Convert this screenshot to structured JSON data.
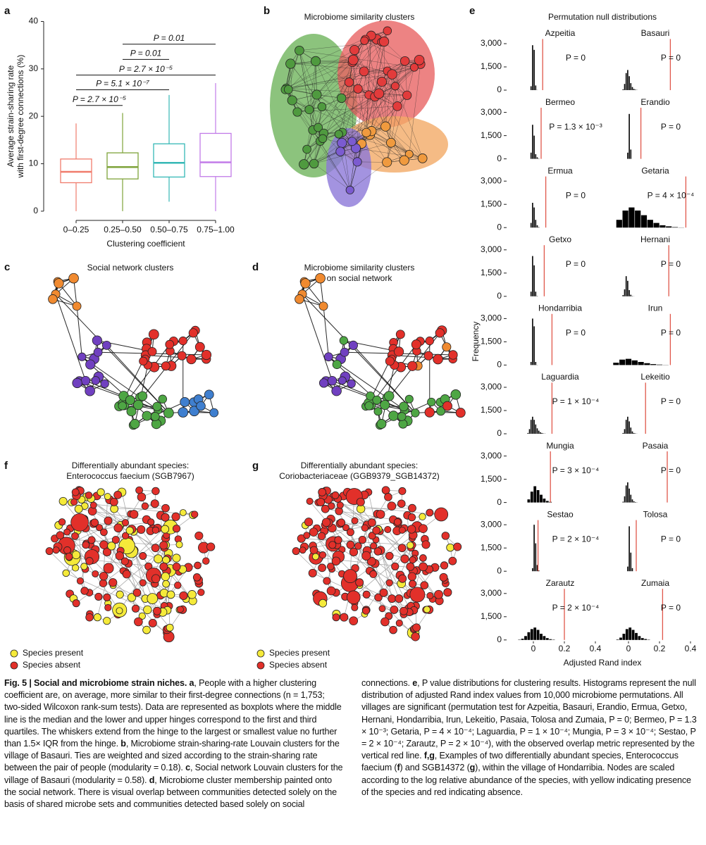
{
  "chart_data": [
    {
      "type": "box",
      "panel": "a",
      "categories": [
        "0–0.25",
        "0.25–0.50",
        "0.50–0.75",
        "0.75–1.00"
      ],
      "boxes": [
        {
          "min": 0,
          "q1": 6,
          "median": 8.3,
          "q3": 11,
          "max": 18.5
        },
        {
          "min": 0,
          "q1": 6.8,
          "median": 9.3,
          "q3": 12.3,
          "max": 20.7
        },
        {
          "min": 2,
          "q1": 7.2,
          "median": 10.2,
          "q3": 14.2,
          "max": 24.5
        },
        {
          "min": 0,
          "q1": 7.3,
          "median": 10.3,
          "q3": 16.4,
          "max": 27
        }
      ],
      "colors": [
        "#f07c6c",
        "#7ea33a",
        "#35b8b6",
        "#c27be8"
      ],
      "ylim": [
        -1.5,
        42
      ],
      "yticks": [
        0,
        10,
        20,
        30,
        40
      ],
      "x_label": "Clustering coefficient",
      "y_label": [
        "Average strain-sharing rate",
        "with first-degree connections (%)"
      ],
      "annotations": [
        {
          "text": "P = 0.01",
          "from": "0.25–0.50",
          "to": "0.75–1.00",
          "y": 35.2
        },
        {
          "text": "P = 0.01",
          "from": "0.25–0.50",
          "to": "0.50–0.75",
          "y": 32
        },
        {
          "text": "P = 2.7 × 10⁻⁵",
          "from": "0–0.25",
          "to": "0.75–1.00",
          "y": 28.7
        },
        {
          "text": "P = 5.1 × 10⁻⁷",
          "from": "0–0.25",
          "to": "0.50–0.75",
          "y": 25.6
        },
        {
          "text": "P = 2.7 × 10⁻⁵",
          "from": "0–0.25",
          "to": "0.25–0.50",
          "y": 22.3
        }
      ]
    },
    {
      "type": "network",
      "panel": "b",
      "title": [
        "Microbiome similarity clusters"
      ]
    },
    {
      "type": "network",
      "panel": "c",
      "title": [
        "Social network clusters"
      ]
    },
    {
      "type": "network",
      "panel": "d",
      "title": [
        "Microbiome similarity clusters",
        "on social network"
      ]
    },
    {
      "type": "network",
      "panel": "f",
      "title": [
        "Differentially abundant species:",
        "Enterococcus faecium (SGB7967)"
      ],
      "legend": [
        {
          "name": "Species present",
          "color": "#f5ea3a"
        },
        {
          "name": "Species absent",
          "color": "#e2302a"
        }
      ]
    },
    {
      "type": "network",
      "panel": "g",
      "title": [
        "Differentially abundant species:",
        "Coriobacteriaceae (GGB9379_SGB14372)"
      ],
      "legend": [
        {
          "name": "Species present",
          "color": "#f5ea3a"
        },
        {
          "name": "Species absent",
          "color": "#e2302a"
        }
      ]
    },
    {
      "type": "histogram",
      "panel": "e",
      "title": "Permutation null distributions",
      "x_label": "Adjusted Rand index",
      "y_label": "Frequency",
      "xlim": [
        -0.1,
        0.45
      ],
      "xticks": [
        0,
        0.2,
        0.4
      ],
      "ylim": [
        0,
        3300
      ],
      "yticks": [
        0,
        {
          "value": 1500,
          "label": "1,500"
        },
        {
          "value": 3000,
          "label": "3,000"
        }
      ],
      "color": "#000000",
      "line_color": "#e0574a",
      "panels": [
        {
          "title": "Azpeitia",
          "bins": [
            -0.02,
            -0.01,
            0,
            0.01,
            0.02,
            0.03
          ],
          "counts": [
            250,
            2900,
            2600,
            300,
            10
          ],
          "observed": 0.06,
          "annotation": "P = 0"
        },
        {
          "title": "Basauri",
          "bins": [
            -0.04,
            -0.03,
            -0.02,
            -0.01,
            0,
            0.01,
            0.02,
            0.03,
            0.04,
            0.05,
            0.06
          ],
          "counts": [
            50,
            400,
            1100,
            1300,
            900,
            450,
            200,
            80,
            30,
            10
          ],
          "observed": 0.27,
          "annotation": "P = 0"
        },
        {
          "title": "Bermeo",
          "bins": [
            -0.02,
            -0.01,
            0,
            0.01,
            0.02,
            0.03,
            0.04
          ],
          "counts": [
            400,
            2200,
            1500,
            300,
            100,
            20
          ],
          "observed": 0.05,
          "annotation": "P = 1.3 × 10⁻³"
        },
        {
          "title": "Erandio",
          "bins": [
            -0.01,
            0,
            0.01,
            0.02
          ],
          "counts": [
            400,
            2900,
            600
          ],
          "observed": 0.08,
          "annotation": "P = 0"
        },
        {
          "title": "Ermua",
          "bins": [
            -0.02,
            -0.01,
            0,
            0.01,
            0.02,
            0.03,
            0.04
          ],
          "counts": [
            300,
            1600,
            1300,
            500,
            150,
            30
          ],
          "observed": 0.08,
          "annotation": "P = 0"
        },
        {
          "title": "Getaria",
          "bins": [
            -0.08,
            -0.04,
            0,
            0.04,
            0.08,
            0.12,
            0.16,
            0.2,
            0.24,
            0.28,
            0.32,
            0.36
          ],
          "counts": [
            500,
            1100,
            1300,
            1100,
            800,
            500,
            300,
            150,
            80,
            30,
            10
          ],
          "observed": 0.37,
          "annotation": "P = 4 × 10⁻⁴"
        },
        {
          "title": "Getxo",
          "bins": [
            -0.02,
            -0.01,
            0,
            0.01,
            0.02,
            0.03
          ],
          "counts": [
            300,
            2600,
            2000,
            300,
            20
          ],
          "observed": 0.07,
          "annotation": "P = 0"
        },
        {
          "title": "Hernani",
          "bins": [
            -0.04,
            -0.03,
            -0.02,
            -0.01,
            0,
            0.01,
            0.02,
            0.03,
            0.04
          ],
          "counts": [
            80,
            450,
            1300,
            1000,
            400,
            100,
            20,
            5
          ],
          "observed": 0.26,
          "annotation": "P = 0"
        },
        {
          "title": "Hondarribia",
          "bins": [
            -0.02,
            -0.01,
            0,
            0.01,
            0.02,
            0.03
          ],
          "counts": [
            200,
            3000,
            2500,
            200,
            10
          ],
          "observed": 0.12,
          "annotation": "P = 0"
        },
        {
          "title": "Irun",
          "bins": [
            -0.1,
            -0.06,
            -0.02,
            0.02,
            0.06,
            0.1,
            0.14,
            0.18,
            0.22,
            0.26
          ],
          "counts": [
            150,
            350,
            400,
            300,
            200,
            120,
            60,
            30,
            10
          ],
          "observed": 0.27,
          "annotation": "P = 0"
        },
        {
          "title": "Laguardia",
          "bins": [
            -0.04,
            -0.03,
            -0.02,
            -0.01,
            0,
            0.01,
            0.02,
            0.03,
            0.04,
            0.05,
            0.06,
            0.07,
            0.08
          ],
          "counts": [
            50,
            300,
            900,
            1100,
            900,
            600,
            350,
            200,
            100,
            50,
            20,
            10
          ],
          "observed": 0.12,
          "annotation": "P =  1 × 10⁻⁴"
        },
        {
          "title": "Lekeitio",
          "bins": [
            -0.04,
            -0.03,
            -0.02,
            -0.01,
            0,
            0.01,
            0.02,
            0.03,
            0.04,
            0.05,
            0.06
          ],
          "counts": [
            50,
            300,
            900,
            1100,
            800,
            400,
            150,
            50,
            20,
            5
          ],
          "observed": 0.11,
          "annotation": "P = 0"
        },
        {
          "title": "Mungia",
          "bins": [
            -0.04,
            -0.02,
            0,
            0.02,
            0.04,
            0.06,
            0.08,
            0.1,
            0.12
          ],
          "counts": [
            200,
            700,
            1050,
            800,
            500,
            250,
            100,
            40
          ],
          "observed": 0.11,
          "annotation": "P = 3 × 10⁻⁴"
        },
        {
          "title": "Pasaia",
          "bins": [
            -0.04,
            -0.03,
            -0.02,
            -0.01,
            0,
            0.01,
            0.02,
            0.03,
            0.04,
            0.05,
            0.06
          ],
          "counts": [
            50,
            400,
            1100,
            1300,
            900,
            500,
            200,
            80,
            30,
            10
          ],
          "observed": 0.25,
          "annotation": "P = 0"
        },
        {
          "title": "Sestao",
          "bins": [
            -0.01,
            0,
            0.01,
            0.02,
            0.03,
            0.04
          ],
          "counts": [
            200,
            3000,
            1800,
            400,
            50
          ],
          "observed": 0.03,
          "annotation": "P = 2 × 10⁻⁴"
        },
        {
          "title": "Tolosa",
          "bins": [
            -0.01,
            0,
            0.01,
            0.02,
            0.03
          ],
          "counts": [
            300,
            2900,
            1200,
            200
          ],
          "observed": 0.05,
          "annotation": "P = 0"
        },
        {
          "title": "Zarautz",
          "bins": [
            -0.1,
            -0.08,
            -0.06,
            -0.04,
            -0.02,
            0,
            0.02,
            0.04,
            0.06,
            0.08,
            0.1,
            0.12,
            0.14
          ],
          "counts": [
            20,
            80,
            250,
            500,
            700,
            800,
            650,
            400,
            250,
            120,
            50,
            20
          ],
          "observed": 0.2,
          "annotation": "P = 2 × 10⁻⁴"
        },
        {
          "title": "Zumaia",
          "bins": [
            -0.08,
            -0.06,
            -0.04,
            -0.02,
            0,
            0.02,
            0.04,
            0.06,
            0.08,
            0.1,
            0.12,
            0.14
          ],
          "counts": [
            30,
            150,
            400,
            700,
            800,
            650,
            450,
            250,
            120,
            60,
            20
          ],
          "observed": 0.22,
          "annotation": "P = 0"
        }
      ]
    }
  ],
  "caption": {
    "runs": [
      {
        "text": "Fig. 5 | Social and microbiome strain niches. a",
        "bold": true
      },
      {
        "text": ", People with a higher clustering coefficient are, on average, more similar to their first-degree connections (n = 1,753; two-sided Wilcoxon rank-sum tests). Data are represented as boxplots where the middle line is the median and the lower and upper hinges correspond to the first and third quartiles. The whiskers extend from the hinge to the largest or smallest value no further than 1.5× IQR from the hinge. "
      },
      {
        "text": "b",
        "bold": true
      },
      {
        "text": ", Microbiome strain-sharing-rate Louvain clusters for the village of Basauri. Ties are weighted and sized according to the strain-sharing rate between the pair of people (modularity = 0.18). "
      },
      {
        "text": "c",
        "bold": true
      },
      {
        "text": ", Social network Louvain clusters for the village of Basauri (modularity = 0.58). "
      },
      {
        "text": "d",
        "bold": true
      },
      {
        "text": ", Microbiome cluster membership painted onto the social network. There is visual overlap between communities detected solely on the basis of shared microbe sets and communities detected based solely on social connections. "
      },
      {
        "text": "e",
        "bold": true
      },
      {
        "text": ", P value distributions for clustering results. Histograms represent the null distribution of adjusted Rand index values from 10,000 microbiome permutations. All villages are significant (permutation test for Azpeitia, Basauri, Erandio, Ermua, Getxo, Hernani, Hondarribia, Irun, Lekeitio, Pasaia, Tolosa and Zumaia, P = 0; Bermeo, P = 1.3 × 10⁻³; Getaria, P = 4 × 10⁻⁴; Laguardia, P = 1 × 10⁻⁴; Mungia, P = 3 × 10⁻⁴; Sestao, P = 2 × 10⁻⁴; Zarautz, P = 2 × 10⁻⁴), with the observed overlap metric represented by the vertical red line. "
      },
      {
        "text": "f,g",
        "bold": true
      },
      {
        "text": ", Examples of two differentially abundant species, Enterococcus faecium ("
      },
      {
        "text": "f",
        "bold": true
      },
      {
        "text": ") and SGB14372 ("
      },
      {
        "text": "g",
        "bold": true
      },
      {
        "text": "), within the village of Hondarribia. Nodes are scaled according to the log relative abundance of the species, with yellow indicating presence of the species and red indicating absence."
      }
    ]
  }
}
